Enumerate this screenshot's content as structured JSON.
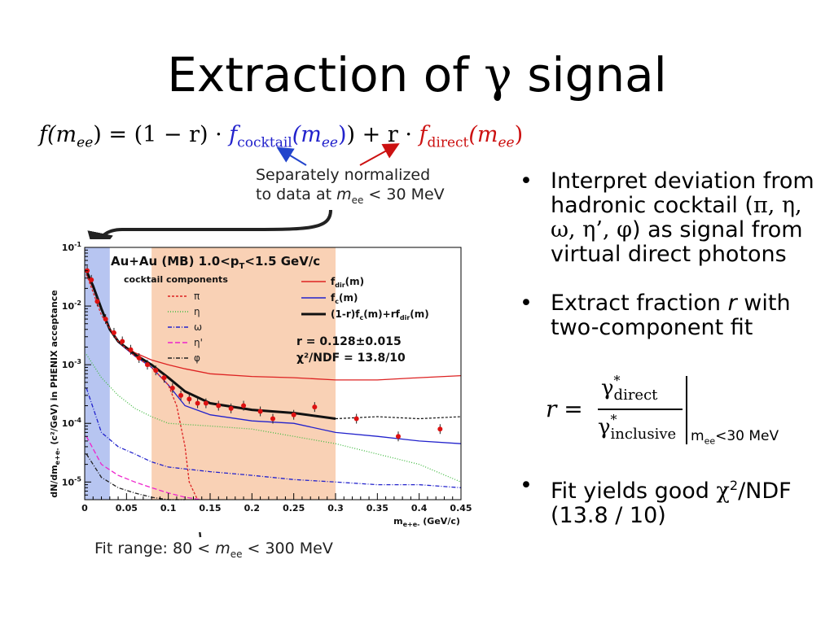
{
  "slide": {
    "title_text": "Extraction of ",
    "title_greek": "γ",
    "title_tail": " signal"
  },
  "formula": {
    "lhs": "f(m",
    "lhs_sub": "ee",
    "mid": ") = (1 − r) · ",
    "cocktail_f": "f",
    "cocktail_sub": "cocktail",
    "cocktail_arg": "(m",
    "cocktail_arg_sub": "ee",
    "plus": ") + r · ",
    "direct_f": "f",
    "direct_sub": "direct",
    "direct_arg": "(m",
    "direct_arg_sub": "ee",
    "close": ")"
  },
  "annotations": {
    "normalized_line1": "Separately normalized",
    "normalized_line2_a": "to data at ",
    "normalized_line2_m": "m",
    "normalized_line2_sub": "ee",
    "normalized_line2_b": " < 30 MeV",
    "fit_range_a": "Fit range: 80 < ",
    "fit_range_m": "m",
    "fit_range_sub": "ee",
    "fit_range_b": " < 300 MeV"
  },
  "bullets": {
    "b1_text": "Interpret deviation from hadronic cocktail (",
    "b1_greek": "π, η, ω, η’, φ",
    "b1_tail": ") as signal from virtual direct photons",
    "b2_a": "Extract fraction ",
    "b2_r": "r",
    "b2_b": " with two-component fit",
    "b3_a": "Fit yields good ",
    "b3_chi": "χ",
    "b3_sup": "2",
    "b3_b": "/NDF (13.8 / 10)"
  },
  "r_formula": {
    "lhs": "r =",
    "num": "γ",
    "num_star": "*",
    "num_sub": "direct",
    "den": "γ",
    "den_star": "*",
    "den_sub": "inclusive",
    "cond_m": "m",
    "cond_sub": "ee",
    "cond_tail": "<30 MeV"
  },
  "chart_data": {
    "type": "line",
    "title": "Au+Au (MB) 1.0<p",
    "title_sub": "T",
    "title_tail": "<1.5 GeV/c",
    "components_label": "cocktail components",
    "ylabel": "dN/dm",
    "ylabel_sub": "e+e-",
    "ylabel_tail": " (c²/GeV) in PHENIX acceptance",
    "xlabel": "m",
    "xlabel_sub": "e+e-",
    "xlabel_tail": " (GeV/c)",
    "xlim": [
      0,
      0.45
    ],
    "ylim": [
      5e-06,
      0.1
    ],
    "log_y": true,
    "xticks": [
      "0",
      "0.05",
      "0.1",
      "0.15",
      "0.2",
      "0.25",
      "0.3",
      "0.35",
      "0.4",
      "0.45"
    ],
    "yticks": [
      {
        "base": "10",
        "exp": "-1",
        "v": 0.1
      },
      {
        "base": "10",
        "exp": "-2",
        "v": 0.01
      },
      {
        "base": "10",
        "exp": "-3",
        "v": 0.001
      },
      {
        "base": "10",
        "exp": "-4",
        "v": 0.0001
      },
      {
        "base": "10",
        "exp": "-5",
        "v": 1e-05
      }
    ],
    "norm_band": [
      0,
      0.03
    ],
    "fit_band": [
      0.08,
      0.3
    ],
    "fit_result": "r = 0.128±0.015",
    "chi2": "χ²/NDF = 13.8/10",
    "legend_left": [
      {
        "label": "π",
        "color": "#dd2222",
        "dash": "3,2"
      },
      {
        "label": "η",
        "color": "#44bb44",
        "dash": "1,2"
      },
      {
        "label": "ω",
        "color": "#2222cc",
        "dash": "5,2,1,2"
      },
      {
        "label": "η'",
        "color": "#ee22cc",
        "dash": "6,3"
      },
      {
        "label": "φ",
        "color": "#222222",
        "dash": "5,2,1,2"
      }
    ],
    "legend_right": [
      {
        "label": "f",
        "sub": "dir",
        "tail": "(m)",
        "color": "#dd2222",
        "width": 1.5
      },
      {
        "label": "f",
        "sub": "c",
        "tail": "(m)",
        "color": "#2222cc",
        "width": 1.5
      },
      {
        "label": "(1-r)f",
        "sub": "c",
        "tail": "(m)+rf",
        "sub2": "dir",
        "tail2": "(m)",
        "color": "#111111",
        "width": 3
      }
    ],
    "series": [
      {
        "name": "f_dir(m)",
        "color": "#dd2222",
        "width": 1.3,
        "dash": "",
        "x": [
          0.002,
          0.01,
          0.02,
          0.03,
          0.04,
          0.06,
          0.08,
          0.1,
          0.12,
          0.15,
          0.2,
          0.25,
          0.3,
          0.35,
          0.4,
          0.45
        ],
        "y": [
          0.035,
          0.02,
          0.0085,
          0.004,
          0.0025,
          0.0016,
          0.0012,
          0.001,
          0.00085,
          0.0007,
          0.00063,
          0.0006,
          0.00055,
          0.00055,
          0.0006,
          0.00065
        ]
      },
      {
        "name": "f_c(m)",
        "color": "#2222cc",
        "width": 1.3,
        "dash": "",
        "x": [
          0.002,
          0.01,
          0.02,
          0.03,
          0.04,
          0.06,
          0.08,
          0.1,
          0.12,
          0.15,
          0.2,
          0.25,
          0.3,
          0.35,
          0.4,
          0.45
        ],
        "y": [
          0.04,
          0.022,
          0.009,
          0.004,
          0.0024,
          0.0014,
          0.0009,
          0.00045,
          0.0002,
          0.00014,
          0.00011,
          0.0001,
          7e-05,
          6e-05,
          5e-05,
          4.5e-05
        ]
      },
      {
        "name": "(1-r)f_c(m)+rf_dir(m)",
        "color": "#111111",
        "width": 3,
        "dash": "",
        "x": [
          0.002,
          0.01,
          0.02,
          0.03,
          0.04,
          0.06,
          0.08,
          0.1,
          0.12,
          0.15,
          0.2,
          0.25,
          0.3
        ],
        "y": [
          0.04,
          0.022,
          0.009,
          0.004,
          0.0025,
          0.0015,
          0.001,
          0.0006,
          0.00035,
          0.00022,
          0.00017,
          0.00015,
          0.00012
        ]
      },
      {
        "name": "fit extrapolation",
        "color": "#111111",
        "width": 1.2,
        "dash": "3,2",
        "x": [
          0.3,
          0.35,
          0.4,
          0.45
        ],
        "y": [
          0.00012,
          0.00013,
          0.00012,
          0.00013
        ]
      },
      {
        "name": "π",
        "color": "#dd2222",
        "width": 1.3,
        "dash": "3,2",
        "x": [
          0.002,
          0.02,
          0.04,
          0.06,
          0.08,
          0.1,
          0.11,
          0.12,
          0.125,
          0.13,
          0.135
        ],
        "y": [
          0.035,
          0.007,
          0.0025,
          0.0014,
          0.0009,
          0.00045,
          0.0002,
          4e-05,
          1e-05,
          7e-06,
          5e-06
        ]
      },
      {
        "name": "η",
        "color": "#44bb44",
        "width": 1.3,
        "dash": "1,2",
        "x": [
          0.002,
          0.02,
          0.04,
          0.06,
          0.08,
          0.1,
          0.15,
          0.2,
          0.25,
          0.3,
          0.35,
          0.4,
          0.45
        ],
        "y": [
          0.0015,
          0.0006,
          0.0003,
          0.00018,
          0.00013,
          0.0001,
          9e-05,
          8e-05,
          6e-05,
          4.5e-05,
          3e-05,
          2e-05,
          1e-05
        ]
      },
      {
        "name": "ω",
        "color": "#2222cc",
        "width": 1.3,
        "dash": "5,2,1,2",
        "x": [
          0.002,
          0.02,
          0.04,
          0.06,
          0.08,
          0.1,
          0.15,
          0.2,
          0.25,
          0.3,
          0.35,
          0.4,
          0.45
        ],
        "y": [
          0.0004,
          7e-05,
          4e-05,
          3e-05,
          2.2e-05,
          1.8e-05,
          1.5e-05,
          1.3e-05,
          1.1e-05,
          1e-05,
          9e-06,
          9e-06,
          8e-06
        ]
      },
      {
        "name": "η'",
        "color": "#ee22cc",
        "width": 1.3,
        "dash": "6,3",
        "x": [
          0.002,
          0.02,
          0.04,
          0.06,
          0.08,
          0.1,
          0.12,
          0.14
        ],
        "y": [
          6e-05,
          2e-05,
          1.3e-05,
          1e-05,
          8e-06,
          6.5e-06,
          5.5e-06,
          5e-06
        ]
      },
      {
        "name": "φ",
        "color": "#222222",
        "width": 1.3,
        "dash": "5,2,1,2",
        "x": [
          0.002,
          0.02,
          0.04,
          0.06,
          0.08,
          0.1,
          0.12
        ],
        "y": [
          3e-05,
          1.2e-05,
          8e-06,
          6.5e-06,
          5.5e-06,
          5e-06,
          5e-06
        ]
      }
    ],
    "data_points": {
      "color": "#dd1111",
      "x": [
        0.003,
        0.008,
        0.015,
        0.025,
        0.035,
        0.045,
        0.055,
        0.065,
        0.075,
        0.085,
        0.095,
        0.105,
        0.115,
        0.125,
        0.135,
        0.145,
        0.16,
        0.175,
        0.19,
        0.21,
        0.225,
        0.25,
        0.275,
        0.325,
        0.375,
        0.425
      ],
      "y": [
        0.04,
        0.028,
        0.012,
        0.006,
        0.0035,
        0.0025,
        0.0018,
        0.0013,
        0.001,
        0.0008,
        0.0006,
        0.0004,
        0.0003,
        0.00026,
        0.00022,
        0.00022,
        0.0002,
        0.00018,
        0.0002,
        0.00016,
        0.00012,
        0.00014,
        0.00019,
        0.00012,
        6e-05,
        8e-05
      ]
    }
  }
}
